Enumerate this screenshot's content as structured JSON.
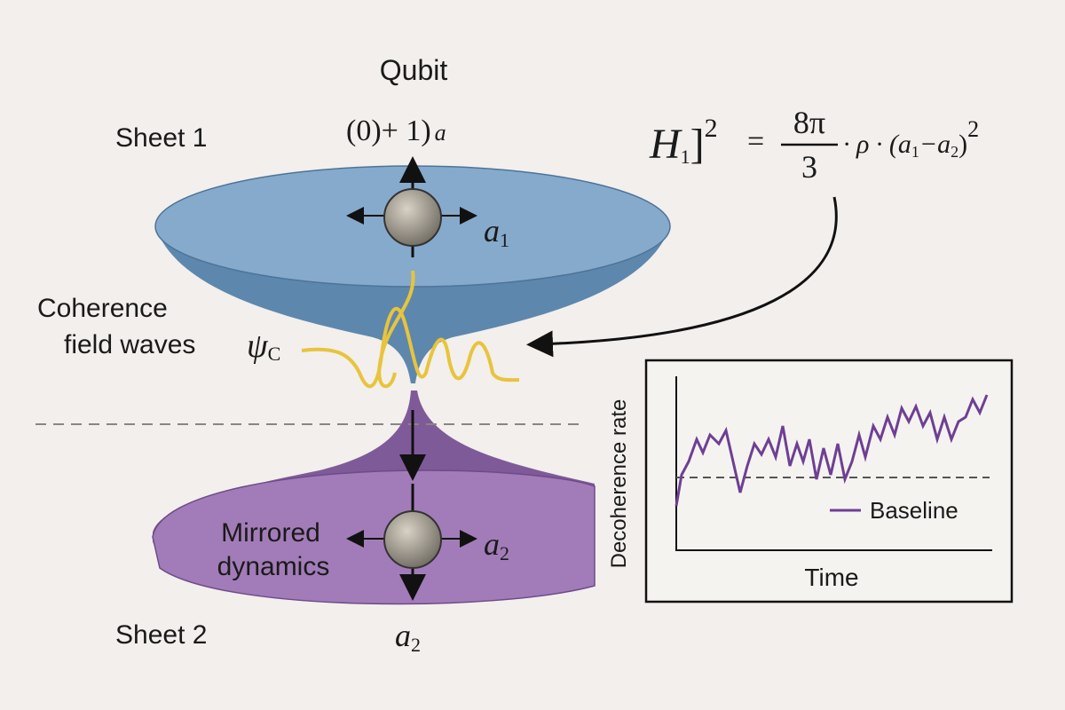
{
  "labels": {
    "qubit": "Qubit",
    "qubit_state": {
      "text": "(0)+ 1)",
      "sub": "a"
    },
    "sheet1": "Sheet 1",
    "sheet2": "Sheet 2",
    "a1": {
      "base": "a",
      "sub": "1"
    },
    "a2_right": {
      "base": "a",
      "sub": "2"
    },
    "a2_bottom": {
      "base": "a",
      "sub": "2"
    },
    "coherence": [
      "Coherence",
      "field waves"
    ],
    "psi": {
      "base": "ψ",
      "sub": "C"
    },
    "mirrored": [
      "Mirrored",
      "dynamics"
    ]
  },
  "equation": {
    "lhs": "H",
    "lhs_sub": "1",
    "bracket": "]",
    "power": "2",
    "equals": "=",
    "numerator": "8π",
    "denominator": "3",
    "middle": "· ρ · (a",
    "sub1": "1",
    "minus": "−a",
    "sub2": "2",
    "close": ")",
    "power2": "2"
  },
  "inset": {
    "y_label": "Decoherence rate",
    "x_label": "Time",
    "legend": "Baseline"
  }
}
